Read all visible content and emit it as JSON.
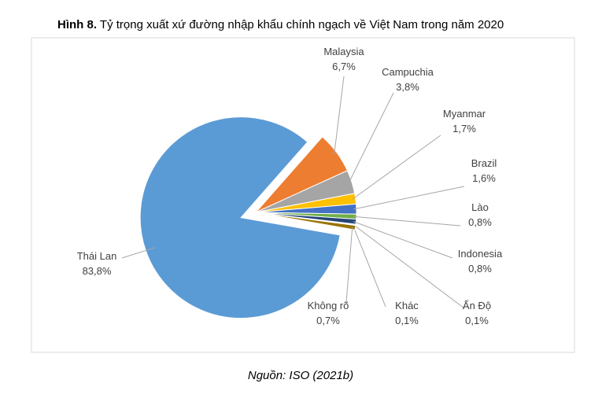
{
  "chart_data": {
    "type": "pie",
    "figure_label": "Hình 8.",
    "title": "Tỷ trọng xuất xứ đường nhập khẩu chính ngạch về Việt Nam trong năm 2020",
    "source": "Nguồn: ISO (2021b)",
    "categories": [
      "Thái Lan",
      "Malaysia",
      "Campuchia",
      "Myanmar",
      "Brazil",
      "Lào",
      "Indonesia",
      "Ấn Độ",
      "Khác",
      "Không rõ"
    ],
    "values": [
      83.8,
      6.7,
      3.8,
      1.7,
      1.6,
      0.8,
      0.8,
      0.1,
      0.1,
      0.7
    ],
    "value_labels": [
      "83,8%",
      "6,7%",
      "3,8%",
      "1,7%",
      "1,6%",
      "0,8%",
      "0,8%",
      "0,1%",
      "0,1%",
      "0,7%"
    ],
    "colors": [
      "#5b9bd5",
      "#ed7d31",
      "#a5a5a5",
      "#ffc000",
      "#4472c4",
      "#70ad47",
      "#264478",
      "#9e480e",
      "#636363",
      "#997300"
    ]
  }
}
